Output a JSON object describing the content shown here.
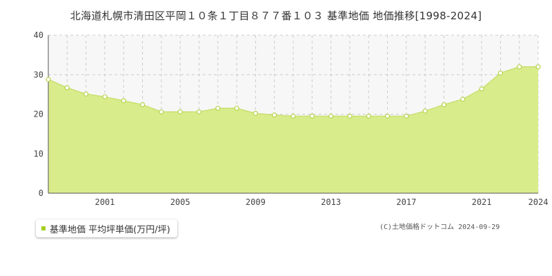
{
  "chart_data": {
    "type": "area",
    "title": "北海道札幌市清田区平岡１０条１丁目８７７番１０３ 基準地価 地価推移[1998-2024]",
    "x": [
      1998,
      1999,
      2000,
      2001,
      2002,
      2003,
      2004,
      2005,
      2006,
      2007,
      2008,
      2009,
      2010,
      2011,
      2012,
      2013,
      2014,
      2015,
      2016,
      2017,
      2018,
      2019,
      2020,
      2021,
      2022,
      2023,
      2024
    ],
    "series": [
      {
        "name": "基準地価 平均坪単価(万円/坪)",
        "values": [
          28.8,
          26.7,
          25.1,
          24.4,
          23.4,
          22.4,
          20.6,
          20.6,
          20.6,
          21.5,
          21.5,
          20.2,
          19.8,
          19.5,
          19.5,
          19.5,
          19.5,
          19.5,
          19.5,
          19.5,
          20.8,
          22.4,
          23.8,
          26.4,
          30.4,
          32.0,
          32.0
        ]
      }
    ],
    "x_tick_labels": [
      "2001",
      "2005",
      "2009",
      "2013",
      "2017",
      "2021",
      "2024"
    ],
    "y_tick_labels": [
      "0",
      "10",
      "20",
      "30",
      "40"
    ],
    "ylim": [
      0,
      40
    ],
    "xlim": [
      1998,
      2024
    ],
    "grid": true,
    "legend": "bottom-left",
    "colors": {
      "line": "#c8e070",
      "fill": "#d9ec8c",
      "marker_stroke": "#b5d44a",
      "legend_marker": "#a4cf1e",
      "upper_band": "#f7f7f7"
    }
  },
  "legend": {
    "label": "基準地価 平均坪単価(万円/坪)"
  },
  "copyright": "(C)土地価格ドットコム 2024-09-29"
}
